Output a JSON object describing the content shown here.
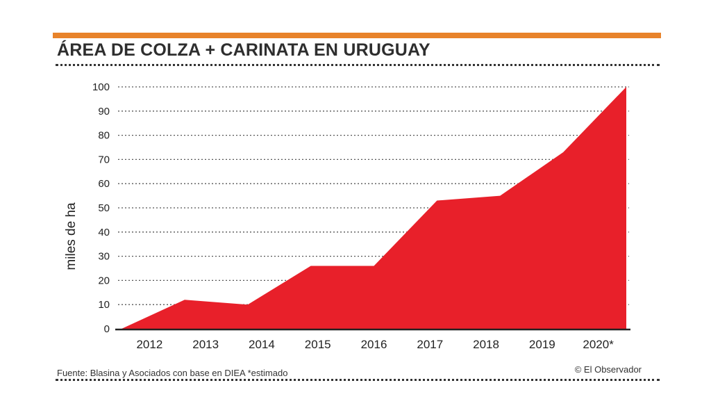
{
  "title": "ÁREA DE COLZA + CARINATA EN URUGUAY",
  "source": "Fuente: Blasina y Asociados con base en DIEA *estimado",
  "credit": "© El Observador",
  "colors": {
    "area": "#e8202a",
    "accent_bar": "#e8832a",
    "grid": "#555555"
  },
  "chart_data": {
    "type": "area",
    "title": "ÁREA DE COLZA + CARINATA EN URUGUAY",
    "xlabel": "",
    "ylabel": "miles de ha",
    "categories": [
      "2012",
      "2013",
      "2014",
      "2015",
      "2016",
      "2017",
      "2018",
      "2019",
      "2020*"
    ],
    "series": [
      {
        "values": [
          0,
          12,
          10,
          26,
          26,
          53,
          55,
          73,
          100
        ]
      }
    ],
    "yticks": [
      0,
      10,
      20,
      30,
      40,
      50,
      60,
      70,
      80,
      90,
      100
    ],
    "ylim": [
      0,
      100
    ],
    "grid": true,
    "grid_style": "dotted",
    "legend": "none"
  }
}
